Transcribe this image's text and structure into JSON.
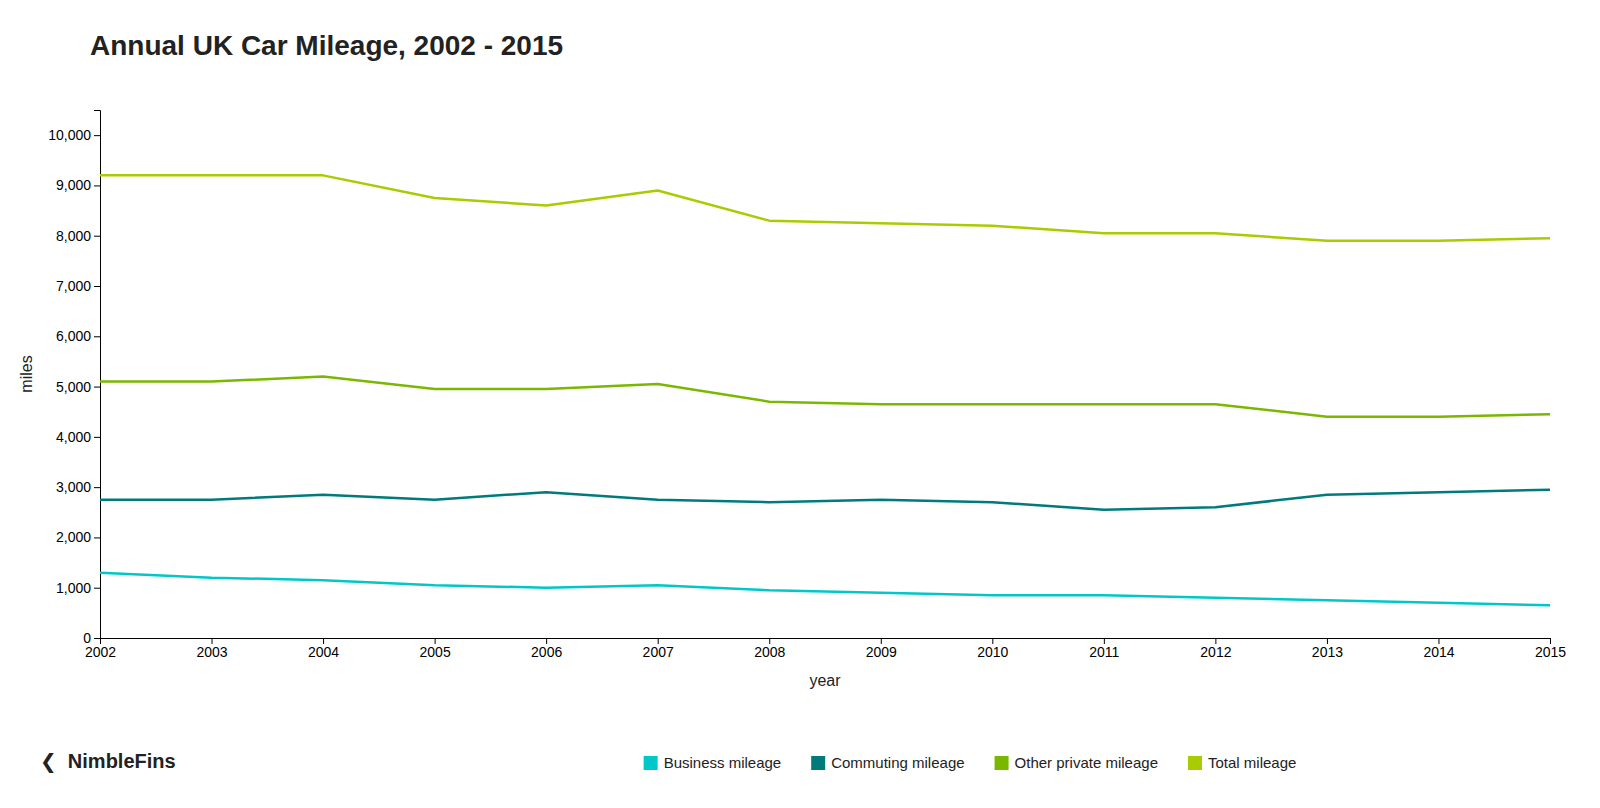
{
  "chart_data": {
    "type": "line",
    "title": "Annual UK Car Mileage, 2002 - 2015",
    "xlabel": "year",
    "ylabel": "miles",
    "x": [
      2002,
      2003,
      2004,
      2005,
      2006,
      2007,
      2008,
      2009,
      2010,
      2011,
      2012,
      2013,
      2014,
      2015
    ],
    "xlim": [
      2002,
      2015
    ],
    "xticks": [
      2002,
      2003,
      2004,
      2005,
      2006,
      2007,
      2008,
      2009,
      2010,
      2011,
      2012,
      2013,
      2014,
      2015
    ],
    "ylim": [
      0,
      10500
    ],
    "yticks": [
      0,
      {
        "value": 1000,
        "label": "1,000"
      },
      {
        "value": 2000,
        "label": "2,000"
      },
      {
        "value": 3000,
        "label": "3,000"
      },
      {
        "value": 4000,
        "label": "4,000"
      },
      {
        "value": 5000,
        "label": "5,000"
      },
      {
        "value": 6000,
        "label": "6,000"
      },
      {
        "value": 7000,
        "label": "7,000"
      },
      {
        "value": 8000,
        "label": "8,000"
      },
      {
        "value": 9000,
        "label": "9,000"
      },
      {
        "value": 10000,
        "label": "10,000"
      }
    ],
    "grid": false,
    "legend": "bottom",
    "annotations": [
      "❮  NimbleFins"
    ],
    "series": [
      {
        "name": "Business mileage",
        "color": "#00c8c8",
        "values": [
          1300,
          1200,
          1150,
          1050,
          1000,
          1050,
          950,
          900,
          850,
          850,
          800,
          750,
          700,
          650
        ]
      },
      {
        "name": "Commuting mileage",
        "color": "#007a7a",
        "values": [
          2750,
          2750,
          2850,
          2750,
          2900,
          2750,
          2700,
          2750,
          2700,
          2550,
          2600,
          2850,
          2900,
          2950
        ]
      },
      {
        "name": "Other private mileage",
        "color": "#7ab800",
        "values": [
          5100,
          5100,
          5200,
          4950,
          4950,
          5050,
          4700,
          4650,
          4650,
          4650,
          4650,
          4400,
          4400,
          4450
        ]
      },
      {
        "name": "Total mileage",
        "color": "#a8cc00",
        "values": [
          9200,
          9200,
          9200,
          8750,
          8600,
          8900,
          8300,
          8250,
          8200,
          8050,
          8050,
          7900,
          7900,
          7950
        ]
      }
    ]
  }
}
